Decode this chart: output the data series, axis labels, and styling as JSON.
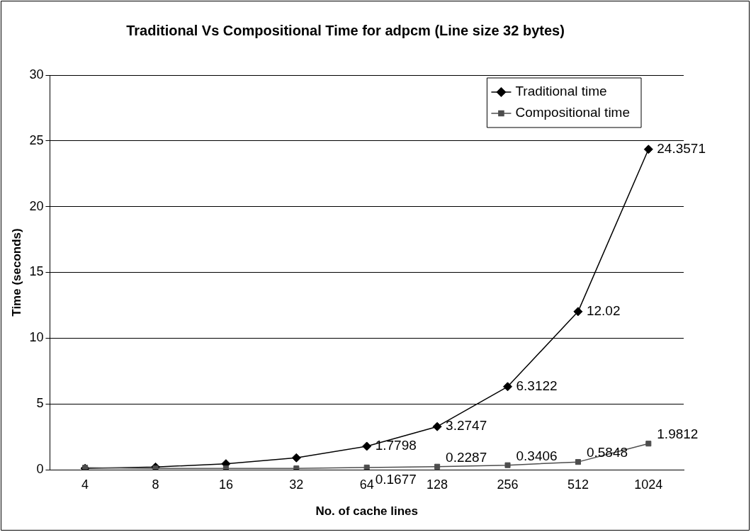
{
  "chart_data": {
    "type": "line",
    "title": "Traditional Vs Compositional Time for adpcm (Line size 32 bytes)",
    "xlabel": "No. of cache lines",
    "ylabel": "Time (seconds)",
    "categories": [
      "4",
      "8",
      "16",
      "32",
      "64",
      "128",
      "256",
      "512",
      "1024"
    ],
    "series": [
      {
        "name": "Traditional time",
        "color": "#000000",
        "marker": "diamond",
        "values": [
          0.1,
          0.2,
          0.45,
          0.9,
          1.7798,
          3.2747,
          6.3122,
          12.02,
          24.3571
        ],
        "value_labels": [
          null,
          null,
          null,
          null,
          "1.7798",
          "3.2747",
          "6.3122",
          "12.02",
          "24.3571"
        ]
      },
      {
        "name": "Compositional time",
        "color": "#4d4d4d",
        "marker": "square",
        "values": [
          0.15,
          0.1,
          0.1,
          0.1,
          0.1677,
          0.2287,
          0.3406,
          0.5848,
          1.9812
        ],
        "value_labels": [
          null,
          null,
          null,
          null,
          "0.1677",
          "0.2287",
          "0.3406",
          "0.5848",
          "1.9812"
        ]
      }
    ],
    "ylim": [
      0,
      30
    ],
    "yticks": [
      0,
      5,
      10,
      15,
      20,
      25,
      30
    ],
    "grid": "y",
    "legend": "top right"
  }
}
